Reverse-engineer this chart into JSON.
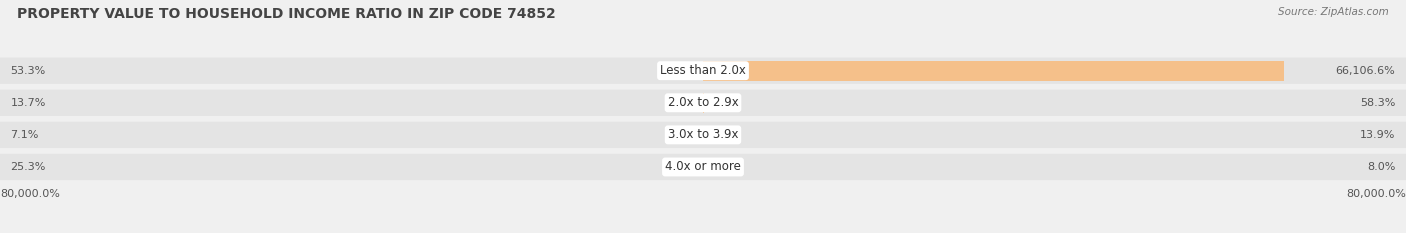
{
  "title": "PROPERTY VALUE TO HOUSEHOLD INCOME RATIO IN ZIP CODE 74852",
  "source": "Source: ZipAtlas.com",
  "categories": [
    "Less than 2.0x",
    "2.0x to 2.9x",
    "3.0x to 3.9x",
    "4.0x or more"
  ],
  "without_mortgage": [
    53.3,
    13.7,
    7.1,
    25.3
  ],
  "with_mortgage": [
    66106.6,
    58.3,
    13.9,
    8.0
  ],
  "axis_max": 80000.0,
  "without_color": "#8ab4d4",
  "with_color": "#f5c08a",
  "background_color": "#f0f0f0",
  "row_bg_color": "#e4e4e4",
  "title_fontsize": 10,
  "source_fontsize": 8,
  "label_fontsize": 8.5,
  "value_fontsize": 8,
  "axis_label_left": "80,000.0%",
  "axis_label_right": "80,000.0%",
  "title_color": "#444444",
  "label_color": "#555555",
  "source_color": "#777777"
}
